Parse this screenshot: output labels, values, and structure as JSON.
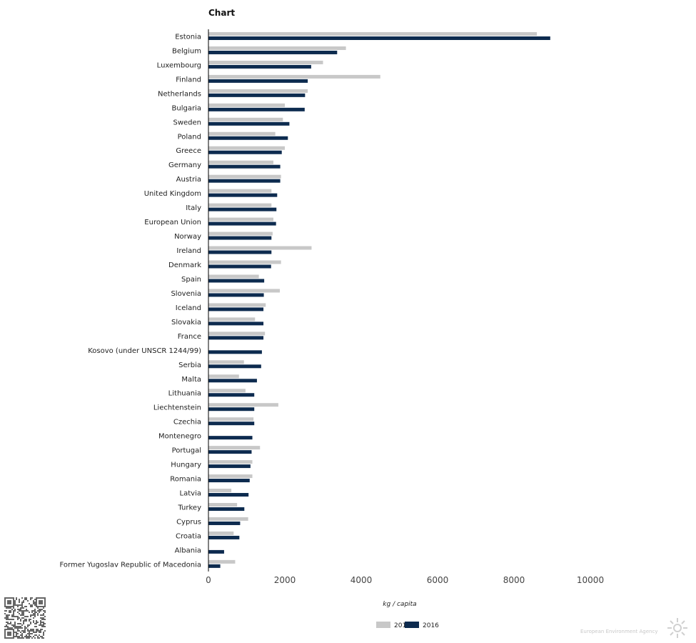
{
  "title": "Chart",
  "footer": {
    "brand": "European Environment Agency"
  },
  "colors": {
    "series_2010": "#c8c8c8",
    "series_2016": "#0d2b4f",
    "axis": "#000000"
  },
  "chart_data": {
    "type": "bar",
    "orientation": "horizontal",
    "title": "Chart",
    "xlabel": "kg / capita",
    "ylabel": "",
    "xlim": [
      0,
      10000
    ],
    "xticks": [
      0,
      2000,
      4000,
      6000,
      8000,
      10000
    ],
    "grid": false,
    "legend_position": "bottom",
    "categories": [
      "Estonia",
      "Belgium",
      "Luxembourg",
      "Finland",
      "Netherlands",
      "Bulgaria",
      "Sweden",
      "Poland",
      "Greece",
      "Germany",
      "Austria",
      "United Kingdom",
      "Italy",
      "European Union",
      "Norway",
      "Ireland",
      "Denmark",
      "Spain",
      "Slovenia",
      "Iceland",
      "Slovakia",
      "France",
      "Kosovo (under UNSCR 1244/99)",
      "Serbia",
      "Malta",
      "Lithuania",
      "Liechtenstein",
      "Czechia",
      "Montenegro",
      "Portugal",
      "Hungary",
      "Romania",
      "Latvia",
      "Turkey",
      "Cyprus",
      "Croatia",
      "Albania",
      "Former Yugoslav Republic of Macedonia"
    ],
    "series": [
      {
        "name": "2010",
        "values": [
          8600,
          3600,
          3000,
          4500,
          2600,
          2000,
          1950,
          1750,
          2000,
          1700,
          1900,
          1650,
          1650,
          1700,
          1680,
          2700,
          1900,
          1320,
          1870,
          1500,
          1220,
          1480,
          null,
          930,
          800,
          970,
          1830,
          1180,
          null,
          1350,
          1150,
          1150,
          600,
          750,
          1040,
          660,
          null,
          700
        ]
      },
      {
        "name": "2016",
        "values": [
          8950,
          3370,
          2690,
          2600,
          2530,
          2520,
          2120,
          2080,
          1920,
          1880,
          1880,
          1800,
          1780,
          1770,
          1650,
          1650,
          1640,
          1460,
          1450,
          1440,
          1440,
          1440,
          1400,
          1380,
          1270,
          1200,
          1200,
          1200,
          1150,
          1130,
          1100,
          1080,
          1050,
          940,
          830,
          810,
          410,
          310
        ]
      }
    ]
  }
}
